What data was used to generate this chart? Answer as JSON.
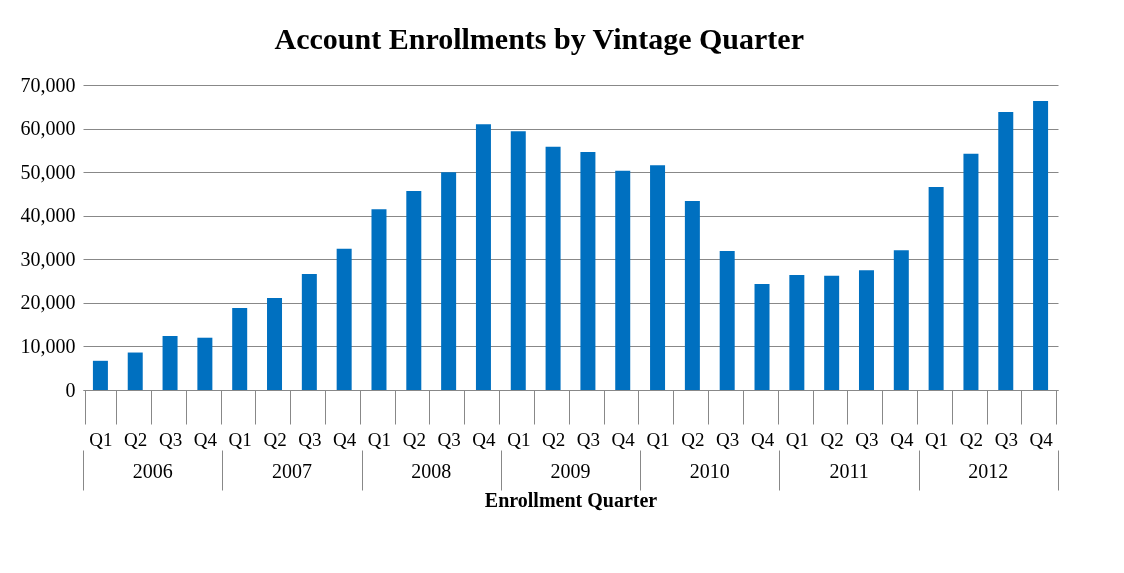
{
  "chart_data": {
    "type": "bar",
    "title": "Account Enrollments by Vintage Quarter",
    "xlabel": "Enrollment Quarter",
    "categories": [
      "Q1",
      "Q2",
      "Q3",
      "Q4",
      "Q1",
      "Q2",
      "Q3",
      "Q4",
      "Q1",
      "Q2",
      "Q3",
      "Q4",
      "Q1",
      "Q2",
      "Q3",
      "Q4",
      "Q1",
      "Q2",
      "Q3",
      "Q4",
      "Q1",
      "Q2",
      "Q3",
      "Q4",
      "Q1",
      "Q2",
      "Q3",
      "Q4"
    ],
    "values": [
      6700,
      8600,
      12400,
      12000,
      18800,
      21100,
      26600,
      32400,
      41500,
      45700,
      50000,
      61000,
      59400,
      55800,
      54600,
      50300,
      51600,
      43400,
      31900,
      24300,
      26400,
      26200,
      27500,
      32100,
      46600,
      54200,
      63800,
      66300
    ],
    "color": "#0070c0",
    "annotations": [
      "2006",
      "2007",
      "2008",
      "2009",
      "2010",
      "2011",
      "2012"
    ],
    "ylim": [
      0,
      70000
    ],
    "yticks": [
      0,
      {
        "value": 10000,
        "label": "10,000"
      },
      {
        "value": 20000,
        "label": "20,000"
      },
      {
        "value": 30000,
        "label": "30,000"
      },
      {
        "value": 40000,
        "label": "40,000"
      },
      {
        "value": 50000,
        "label": "50,000"
      },
      {
        "value": 60000,
        "label": "60,000"
      },
      {
        "value": 70000,
        "label": "70,000"
      }
    ],
    "grid": "y",
    "legend": false
  }
}
